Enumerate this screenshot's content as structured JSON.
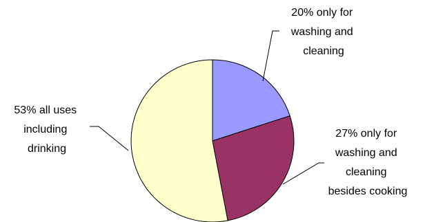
{
  "chart_data": {
    "type": "pie",
    "slices": [
      {
        "value": 20,
        "label_lines": [
          "20% only for",
          "washing and",
          "cleaning"
        ],
        "color": "#9999ff"
      },
      {
        "value": 27,
        "label_lines": [
          "27% only for",
          "washing and",
          "cleaning",
          "besides cooking"
        ],
        "color": "#993366"
      },
      {
        "value": 53,
        "label_lines": [
          "53% all uses",
          "including",
          "drinking"
        ],
        "color": "#ffffcc"
      }
    ],
    "start_angle": "12 o'clock",
    "direction": "clockwise",
    "legend": "none"
  }
}
